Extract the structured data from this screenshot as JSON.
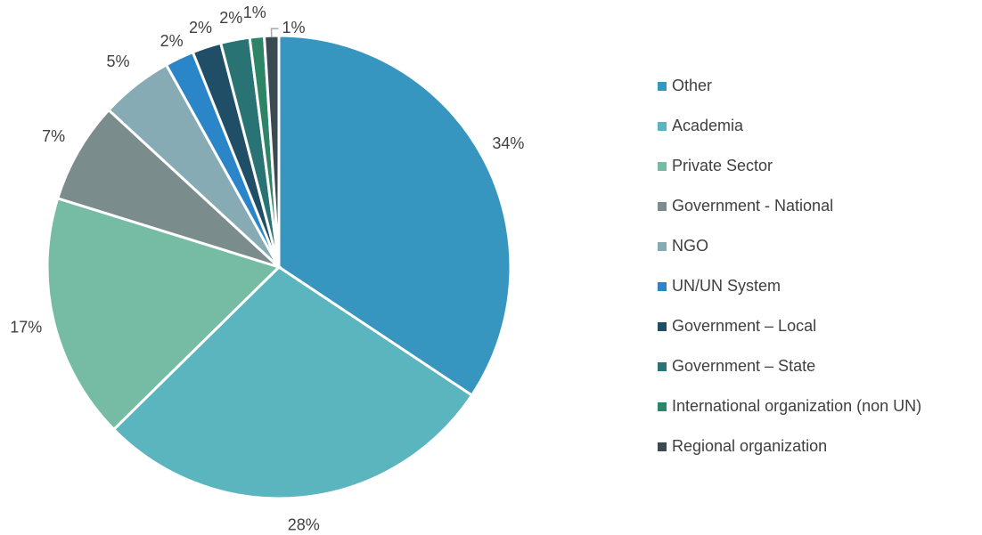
{
  "chart_data": {
    "type": "pie",
    "categories": [
      "Other",
      "Academia",
      "Private Sector",
      "Government - National",
      "NGO",
      "UN/UN  System",
      "Government – Local",
      "Government – State",
      "International organization (non UN)",
      "Regional organization"
    ],
    "values": [
      34,
      28,
      17,
      7,
      5,
      2,
      2,
      2,
      1,
      1
    ],
    "value_labels": [
      "34%",
      "28%",
      "17%",
      "7%",
      "5%",
      "2%",
      "2%",
      "2%",
      "1%",
      "1%"
    ],
    "colors": [
      "#3796bf",
      "#5ab5bf",
      "#76bca5",
      "#7a8c8c",
      "#87abb5",
      "#2a85c9",
      "#1f4e66",
      "#2a7375",
      "#2e8466",
      "#3b4a50"
    ],
    "legend": "right"
  }
}
